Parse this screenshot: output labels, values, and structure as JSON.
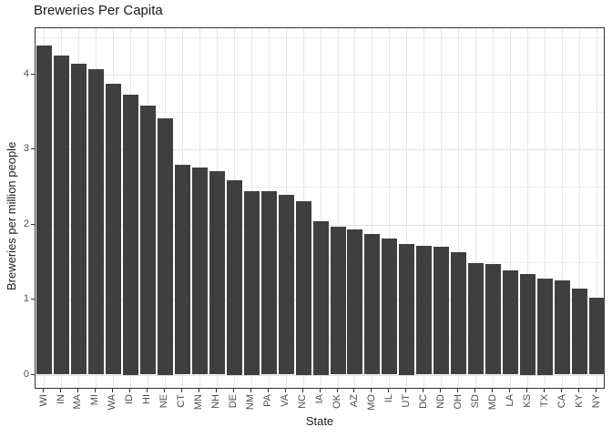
{
  "title": "Breweries Per Capita",
  "chart_data": {
    "type": "bar",
    "title": "Breweries Per Capita",
    "xlabel": "State",
    "ylabel": "Breweries per million people",
    "categories": [
      "WI",
      "IN",
      "MA",
      "MI",
      "WA",
      "ID",
      "HI",
      "NE",
      "CT",
      "MN",
      "NH",
      "DE",
      "NM",
      "PA",
      "VA",
      "NC",
      "IA",
      "OK",
      "AZ",
      "MO",
      "IL",
      "UT",
      "DC",
      "ND",
      "OH",
      "SD",
      "MD",
      "LA",
      "KS",
      "TX",
      "CA",
      "KY",
      "NY"
    ],
    "values": [
      4.38,
      4.25,
      4.14,
      4.07,
      3.87,
      3.73,
      3.58,
      3.42,
      2.8,
      2.76,
      2.71,
      2.59,
      2.45,
      2.44,
      2.39,
      2.31,
      2.05,
      1.97,
      1.93,
      1.87,
      1.81,
      1.74,
      1.72,
      1.7,
      1.63,
      1.49,
      1.47,
      1.39,
      1.34,
      1.28,
      1.26,
      1.15,
      1.03
    ],
    "ylim": [
      0,
      4.6
    ],
    "yticks": [
      0,
      1,
      2,
      3,
      4
    ],
    "minor_grid_step": 0.5,
    "grid": true,
    "legend": "none",
    "bar_color": "#3f3f3f",
    "major_grid_color": "#e2e2e2",
    "minor_grid_color": "#efefef",
    "panel_border_color": "#333333",
    "axis_text_color": "#4d4d4d"
  }
}
